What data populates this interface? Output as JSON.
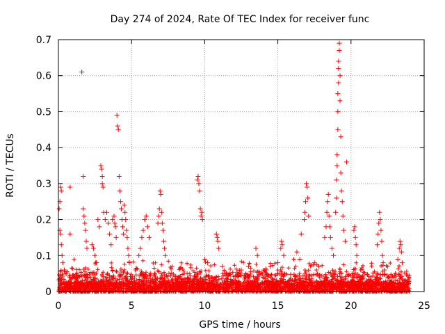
{
  "chart_data": {
    "type": "scatter",
    "title": "Day 274 of 2024, Rate Of TEC Index for receiver func",
    "xlabel": "GPS time / hours",
    "ylabel": "ROTI / TECUs",
    "xlim": [
      0,
      25
    ],
    "ylim": [
      0,
      0.7
    ],
    "xticks": [
      "0",
      "5",
      "10",
      "15",
      "20",
      "25"
    ],
    "yticks": [
      "0",
      "0.1",
      "0.2",
      "0.3",
      "0.4",
      "0.5",
      "0.6",
      "0.7"
    ],
    "grid": true,
    "marker": "+",
    "color": "#ff0000",
    "baseline_range": [
      0.0,
      0.05
    ],
    "series": [
      {
        "points": [
          [
            0.05,
            0.23
          ],
          [
            0.1,
            0.25
          ],
          [
            0.15,
            0.29
          ],
          [
            0.2,
            0.28
          ],
          [
            0.1,
            0.17
          ],
          [
            0.15,
            0.16
          ],
          [
            0.2,
            0.13
          ],
          [
            0.25,
            0.1
          ],
          [
            0.3,
            0.08
          ],
          [
            0.4,
            0.06
          ],
          [
            0.8,
            0.29
          ],
          [
            0.8,
            0.16
          ],
          [
            1.6,
            0.61
          ],
          [
            1.7,
            0.32
          ],
          [
            1.7,
            0.23
          ],
          [
            1.75,
            0.21
          ],
          [
            1.8,
            0.19
          ],
          [
            1.85,
            0.17
          ],
          [
            1.9,
            0.14
          ],
          [
            1.95,
            0.12
          ],
          [
            2.3,
            0.13
          ],
          [
            2.4,
            0.12
          ],
          [
            2.5,
            0.1
          ],
          [
            2.6,
            0.08
          ],
          [
            2.7,
            0.2
          ],
          [
            2.8,
            0.18
          ],
          [
            2.9,
            0.35
          ],
          [
            2.95,
            0.34
          ],
          [
            3.0,
            0.32
          ],
          [
            3.0,
            0.3
          ],
          [
            3.05,
            0.29
          ],
          [
            3.1,
            0.22
          ],
          [
            3.2,
            0.2
          ],
          [
            3.3,
            0.22
          ],
          [
            3.4,
            0.19
          ],
          [
            3.5,
            0.16
          ],
          [
            3.6,
            0.13
          ],
          [
            3.7,
            0.2
          ],
          [
            3.8,
            0.21
          ],
          [
            3.85,
            0.19
          ],
          [
            3.9,
            0.18
          ],
          [
            3.95,
            0.15
          ],
          [
            4.0,
            0.49
          ],
          [
            4.05,
            0.46
          ],
          [
            4.1,
            0.45
          ],
          [
            4.15,
            0.32
          ],
          [
            4.2,
            0.28
          ],
          [
            4.25,
            0.25
          ],
          [
            4.3,
            0.23
          ],
          [
            4.35,
            0.2
          ],
          [
            4.4,
            0.18
          ],
          [
            4.45,
            0.16
          ],
          [
            4.5,
            0.24
          ],
          [
            4.55,
            0.22
          ],
          [
            4.6,
            0.2
          ],
          [
            4.65,
            0.17
          ],
          [
            4.7,
            0.15
          ],
          [
            4.75,
            0.12
          ],
          [
            4.8,
            0.1
          ],
          [
            4.85,
            0.08
          ],
          [
            5.5,
            0.1
          ],
          [
            5.6,
            0.12
          ],
          [
            5.7,
            0.15
          ],
          [
            5.8,
            0.17
          ],
          [
            5.9,
            0.2
          ],
          [
            6.0,
            0.21
          ],
          [
            6.1,
            0.18
          ],
          [
            6.2,
            0.15
          ],
          [
            6.8,
            0.19
          ],
          [
            6.85,
            0.21
          ],
          [
            6.9,
            0.23
          ],
          [
            6.95,
            0.28
          ],
          [
            7.0,
            0.27
          ],
          [
            7.05,
            0.22
          ],
          [
            7.1,
            0.19
          ],
          [
            7.15,
            0.17
          ],
          [
            7.2,
            0.14
          ],
          [
            7.25,
            0.12
          ],
          [
            7.3,
            0.1
          ],
          [
            9.5,
            0.31
          ],
          [
            9.55,
            0.32
          ],
          [
            9.6,
            0.3
          ],
          [
            9.65,
            0.28
          ],
          [
            9.7,
            0.23
          ],
          [
            9.75,
            0.21
          ],
          [
            9.8,
            0.22
          ],
          [
            9.85,
            0.2
          ],
          [
            10.0,
            0.09
          ],
          [
            10.2,
            0.08
          ],
          [
            10.8,
            0.16
          ],
          [
            10.85,
            0.15
          ],
          [
            10.9,
            0.14
          ],
          [
            10.95,
            0.12
          ],
          [
            11.2,
            0.07
          ],
          [
            11.5,
            0.05
          ],
          [
            12.5,
            0.06
          ],
          [
            13.0,
            0.07
          ],
          [
            13.5,
            0.12
          ],
          [
            13.6,
            0.1
          ],
          [
            14.2,
            0.06
          ],
          [
            14.5,
            0.07
          ],
          [
            15.0,
            0.08
          ],
          [
            15.2,
            0.12
          ],
          [
            15.25,
            0.14
          ],
          [
            15.3,
            0.13
          ],
          [
            15.4,
            0.1
          ],
          [
            16.3,
            0.11
          ],
          [
            16.5,
            0.09
          ],
          [
            16.6,
            0.16
          ],
          [
            16.8,
            0.2
          ],
          [
            16.85,
            0.22
          ],
          [
            16.9,
            0.25
          ],
          [
            16.95,
            0.3
          ],
          [
            17.0,
            0.29
          ],
          [
            17.05,
            0.26
          ],
          [
            17.1,
            0.21
          ],
          [
            17.5,
            0.08
          ],
          [
            17.8,
            0.07
          ],
          [
            18.2,
            0.15
          ],
          [
            18.3,
            0.18
          ],
          [
            18.35,
            0.22
          ],
          [
            18.4,
            0.25
          ],
          [
            18.45,
            0.27
          ],
          [
            18.5,
            0.21
          ],
          [
            18.55,
            0.18
          ],
          [
            18.6,
            0.15
          ],
          [
            18.7,
            0.12
          ],
          [
            18.8,
            0.1
          ],
          [
            18.95,
            0.22
          ],
          [
            19.0,
            0.26
          ],
          [
            19.0,
            0.31
          ],
          [
            19.05,
            0.35
          ],
          [
            19.05,
            0.38
          ],
          [
            19.1,
            0.45
          ],
          [
            19.1,
            0.5
          ],
          [
            19.1,
            0.55
          ],
          [
            19.15,
            0.58
          ],
          [
            19.15,
            0.62
          ],
          [
            19.15,
            0.64
          ],
          [
            19.2,
            0.67
          ],
          [
            19.2,
            0.69
          ],
          [
            19.25,
            0.6
          ],
          [
            19.25,
            0.53
          ],
          [
            19.3,
            0.43
          ],
          [
            19.3,
            0.33
          ],
          [
            19.35,
            0.28
          ],
          [
            19.4,
            0.25
          ],
          [
            19.45,
            0.21
          ],
          [
            19.5,
            0.17
          ],
          [
            19.7,
            0.36
          ],
          [
            19.6,
            0.14
          ],
          [
            20.2,
            0.17
          ],
          [
            20.25,
            0.18
          ],
          [
            20.3,
            0.15
          ],
          [
            20.35,
            0.13
          ],
          [
            20.4,
            0.1
          ],
          [
            21.8,
            0.13
          ],
          [
            21.85,
            0.16
          ],
          [
            21.9,
            0.19
          ],
          [
            21.95,
            0.22
          ],
          [
            22.0,
            0.2
          ],
          [
            22.05,
            0.17
          ],
          [
            22.1,
            0.14
          ],
          [
            22.15,
            0.1
          ],
          [
            22.2,
            0.08
          ],
          [
            23.2,
            0.09
          ],
          [
            23.3,
            0.12
          ],
          [
            23.35,
            0.14
          ],
          [
            23.4,
            0.13
          ],
          [
            23.45,
            0.11
          ],
          [
            23.5,
            0.08
          ]
        ]
      }
    ]
  }
}
